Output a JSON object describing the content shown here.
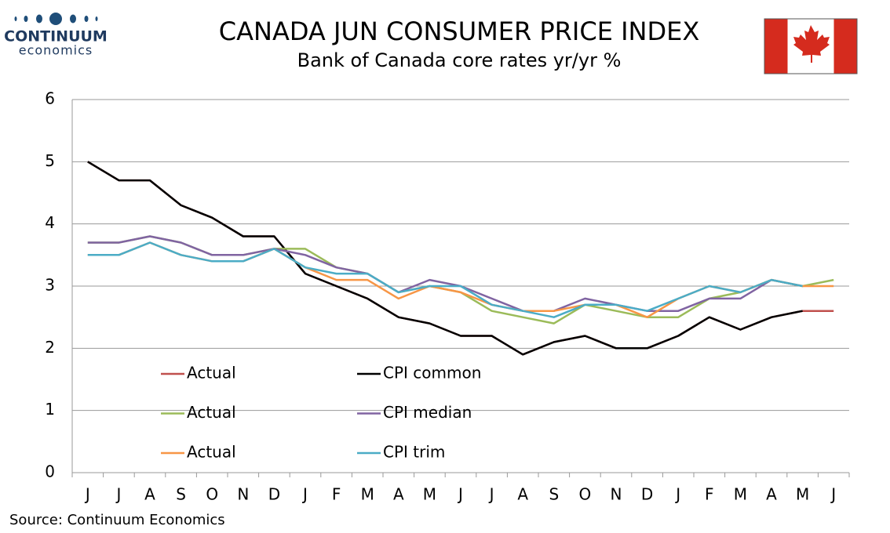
{
  "header": {
    "logo_name": "CONTINUUM",
    "logo_sub": "economics"
  },
  "chart_data": {
    "type": "line",
    "title": "CANADA JUN CONSUMER PRICE INDEX",
    "subtitle": "Bank of Canada core rates yr/yr %",
    "categories": [
      "J",
      "J",
      "A",
      "S",
      "O",
      "N",
      "D",
      "J",
      "F",
      "M",
      "A",
      "M",
      "J",
      "J",
      "A",
      "S",
      "O",
      "N",
      "D",
      "J",
      "F",
      "M",
      "A",
      "M",
      "J"
    ],
    "series": [
      {
        "name": "Actual",
        "color": "#c0504d",
        "values": [
          5.0,
          4.7,
          4.7,
          4.3,
          4.1,
          3.8,
          3.8,
          3.2,
          3.0,
          2.8,
          2.5,
          2.4,
          2.2,
          2.2,
          1.9,
          2.1,
          2.2,
          2.0,
          2.0,
          2.2,
          2.5,
          2.3,
          2.5,
          2.6,
          2.6
        ]
      },
      {
        "name": "CPI common",
        "color": "#000000",
        "values": [
          5.0,
          4.7,
          4.7,
          4.3,
          4.1,
          3.8,
          3.8,
          3.2,
          3.0,
          2.8,
          2.5,
          2.4,
          2.2,
          2.2,
          1.9,
          2.1,
          2.2,
          2.0,
          2.0,
          2.2,
          2.5,
          2.3,
          2.5,
          2.6,
          null
        ]
      },
      {
        "name": "Actual",
        "color": "#9bbb59",
        "values": [
          3.7,
          3.7,
          3.8,
          3.7,
          3.5,
          3.5,
          3.6,
          3.6,
          3.3,
          3.2,
          2.9,
          3.0,
          2.9,
          2.6,
          2.5,
          2.4,
          2.7,
          2.6,
          2.5,
          2.5,
          2.8,
          2.9,
          3.1,
          3.0,
          3.1
        ]
      },
      {
        "name": "CPI median",
        "color": "#8064a2",
        "values": [
          3.7,
          3.7,
          3.8,
          3.7,
          3.5,
          3.5,
          3.6,
          3.5,
          3.3,
          3.2,
          2.9,
          3.1,
          3.0,
          2.8,
          2.6,
          2.6,
          2.8,
          2.7,
          2.6,
          2.6,
          2.8,
          2.8,
          3.1,
          3.0,
          null
        ]
      },
      {
        "name": "Actual",
        "color": "#f79646",
        "values": [
          3.5,
          3.5,
          3.7,
          3.5,
          3.4,
          3.4,
          3.6,
          3.3,
          3.1,
          3.1,
          2.8,
          3.0,
          2.9,
          2.7,
          2.6,
          2.6,
          2.7,
          2.7,
          2.5,
          2.8,
          3.0,
          2.9,
          3.1,
          3.0,
          3.0
        ]
      },
      {
        "name": "CPI trim",
        "color": "#4bacc6",
        "values": [
          3.5,
          3.5,
          3.7,
          3.5,
          3.4,
          3.4,
          3.6,
          3.3,
          3.2,
          3.2,
          2.9,
          3.0,
          3.0,
          2.7,
          2.6,
          2.5,
          2.7,
          2.7,
          2.6,
          2.8,
          3.0,
          2.9,
          3.1,
          3.0,
          null
        ]
      }
    ],
    "ylim": [
      0,
      6
    ],
    "yticks": [
      0,
      1,
      2,
      3,
      4,
      5,
      6
    ],
    "grid": true,
    "source": "Source: Continuum Economics"
  }
}
